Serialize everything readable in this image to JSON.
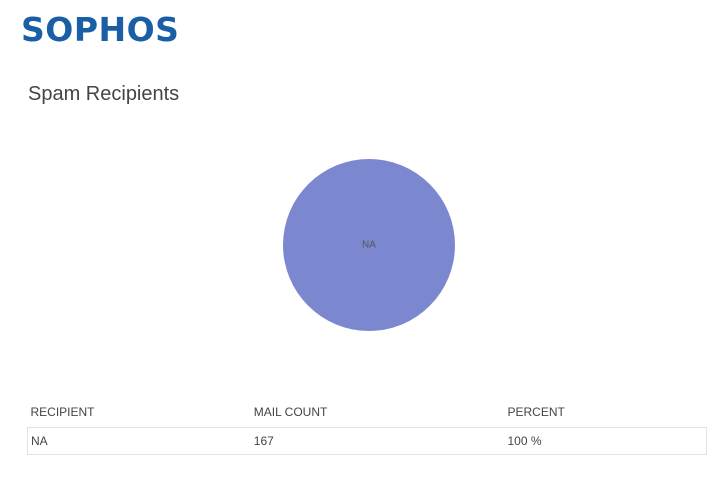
{
  "header": {
    "logo": "SOPHOS"
  },
  "chart_data": {
    "type": "pie",
    "title": "Spam Recipients",
    "categories": [
      "NA"
    ],
    "values": [
      167
    ],
    "colors": [
      "#7b88cf"
    ]
  },
  "table": {
    "columns": [
      "RECIPIENT",
      "MAIL COUNT",
      "PERCENT"
    ],
    "rows": [
      [
        "NA",
        "167",
        "100 %"
      ]
    ]
  }
}
